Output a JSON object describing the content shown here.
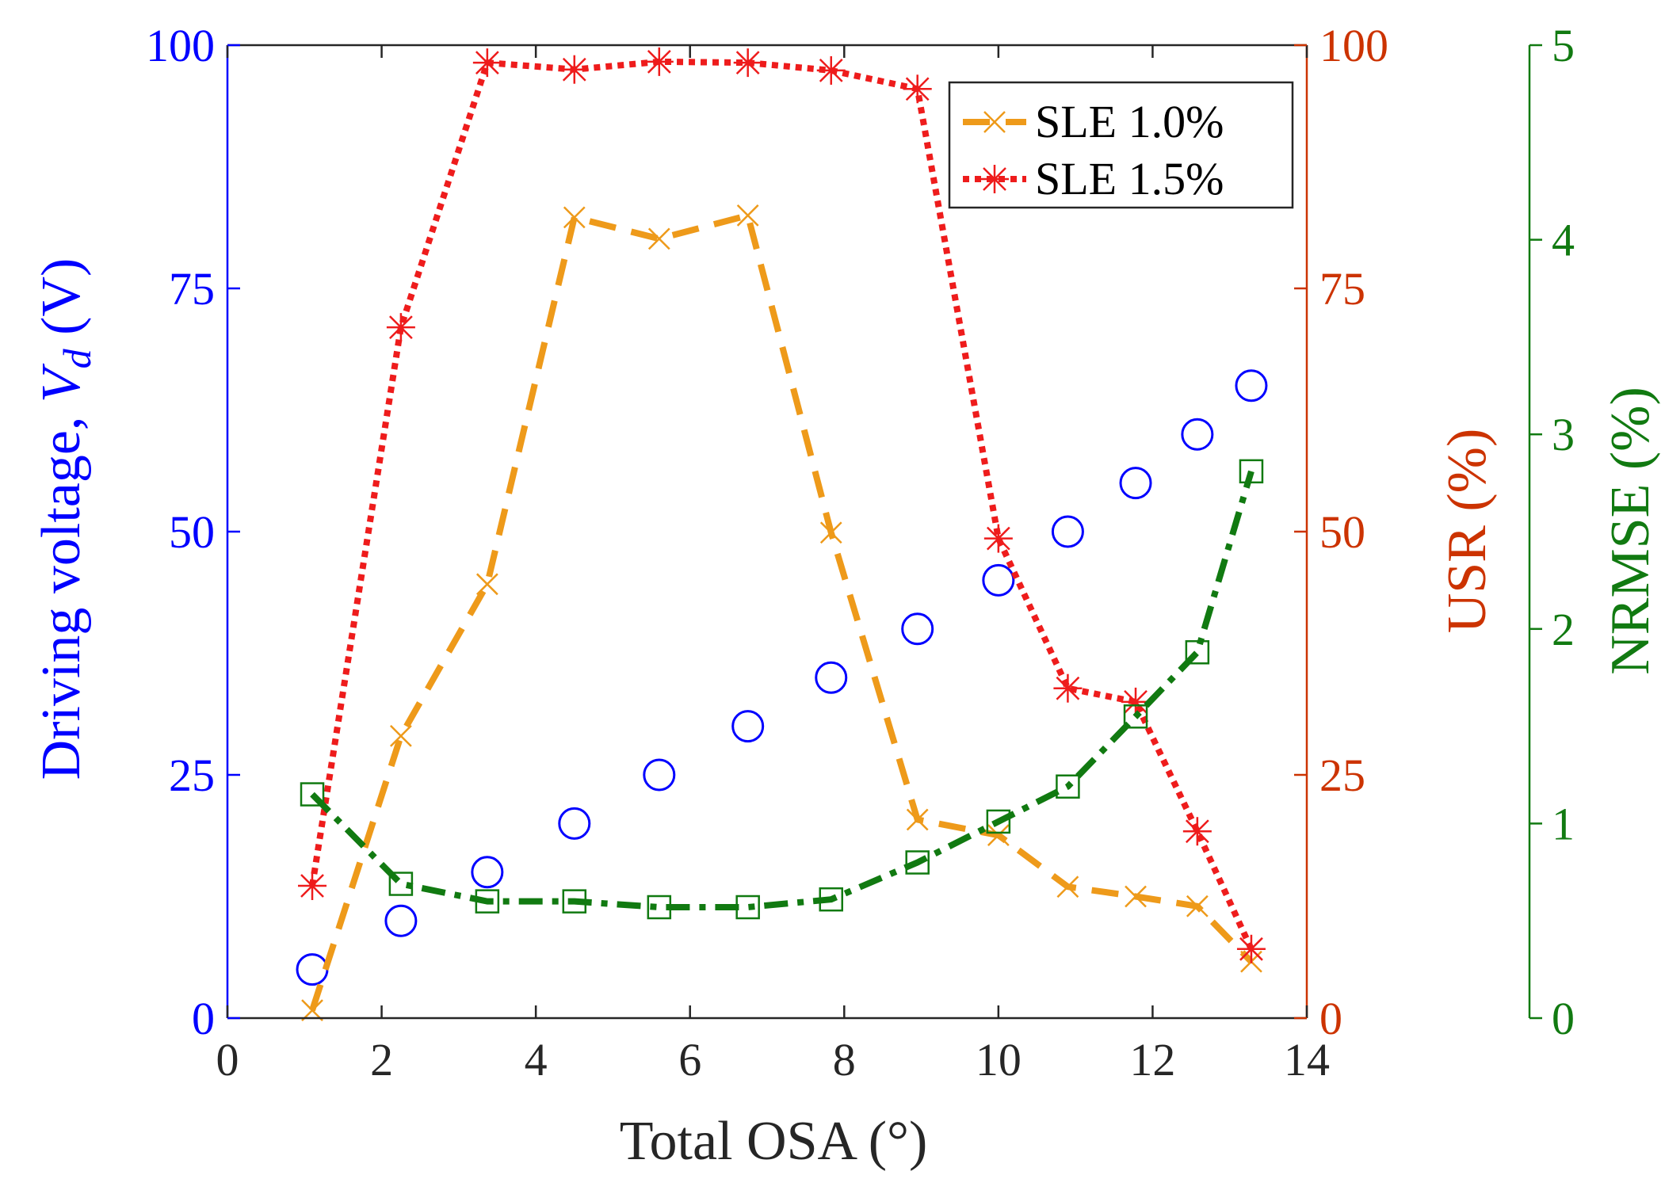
{
  "chart_data": {
    "type": "line",
    "xlabel": "Total OSA (°)",
    "xlim": [
      0,
      14
    ],
    "x_ticks": [
      0,
      2,
      4,
      6,
      8,
      10,
      12,
      14
    ],
    "x_tick_labels": [
      "0",
      "2",
      "4",
      "6",
      "8",
      "10",
      "12",
      "14"
    ],
    "axes": {
      "left": {
        "label_main": "Driving voltage, ",
        "label_var": "V",
        "label_sub": "d",
        "label_unit": " (V)",
        "lim": [
          0,
          100
        ],
        "ticks": [
          0,
          25,
          50,
          75,
          100
        ],
        "tick_labels": [
          "0",
          "25",
          "50",
          "75",
          "100"
        ],
        "color": "#0000ff"
      },
      "right1": {
        "label": "USR (%)",
        "lim": [
          0,
          100
        ],
        "ticks": [
          0,
          25,
          50,
          75,
          100
        ],
        "tick_labels": [
          "0",
          "25",
          "50",
          "75",
          "100"
        ],
        "color": "#cc3300"
      },
      "right2": {
        "label": "NRMSE (%)",
        "lim": [
          0,
          5
        ],
        "ticks": [
          0,
          1,
          2,
          3,
          4,
          5
        ],
        "tick_labels": [
          "0",
          "1",
          "2",
          "3",
          "4",
          "5"
        ],
        "color": "#117a11"
      }
    },
    "series": [
      {
        "name": "Driving voltage",
        "axis": "left",
        "marker": "circle",
        "line": "none",
        "color": "#0000ff",
        "x": [
          1.1,
          2.25,
          3.37,
          4.5,
          5.6,
          6.75,
          7.83,
          8.95,
          10.0,
          10.9,
          11.78,
          12.58,
          13.28
        ],
        "y": [
          5,
          10,
          15,
          20,
          25,
          30,
          35,
          40,
          45,
          50,
          55,
          60,
          65
        ]
      },
      {
        "name": "SLE 1.0%",
        "axis": "right1",
        "marker": "x",
        "line": "dashed",
        "color": "#ee9a1a",
        "in_legend": true,
        "x": [
          1.1,
          2.25,
          3.37,
          4.5,
          5.6,
          6.75,
          7.83,
          8.95,
          10.0,
          10.9,
          11.78,
          12.58,
          13.28
        ],
        "y": [
          0.8,
          29,
          44.6,
          82.3,
          80.1,
          82.5,
          49.9,
          20.4,
          18.8,
          13.5,
          12.5,
          11.5,
          5.8
        ]
      },
      {
        "name": "SLE 1.5%",
        "axis": "right1",
        "marker": "asterisk",
        "line": "dotted",
        "color": "#ee1c1c",
        "in_legend": true,
        "x": [
          1.1,
          2.25,
          3.37,
          4.5,
          5.6,
          6.75,
          7.83,
          8.95,
          10.0,
          10.9,
          11.78,
          12.58,
          13.28
        ],
        "y": [
          13.6,
          71,
          98.2,
          97.5,
          98.3,
          98.2,
          97.4,
          95.5,
          49.3,
          33.9,
          32.5,
          19.2,
          7.1
        ]
      },
      {
        "name": "NRMSE",
        "axis": "right2",
        "marker": "square",
        "line": "dashdot",
        "color": "#117a11",
        "x": [
          1.1,
          2.25,
          3.37,
          4.5,
          5.6,
          6.75,
          7.83,
          8.95,
          10.0,
          10.9,
          11.78,
          12.58,
          13.28
        ],
        "y": [
          1.15,
          0.69,
          0.6,
          0.6,
          0.57,
          0.57,
          0.61,
          0.8,
          1.01,
          1.19,
          1.55,
          1.88,
          2.81
        ]
      }
    ],
    "legend": {
      "position": "top-right",
      "entries": [
        "SLE 1.0%",
        "SLE 1.5%"
      ]
    }
  }
}
